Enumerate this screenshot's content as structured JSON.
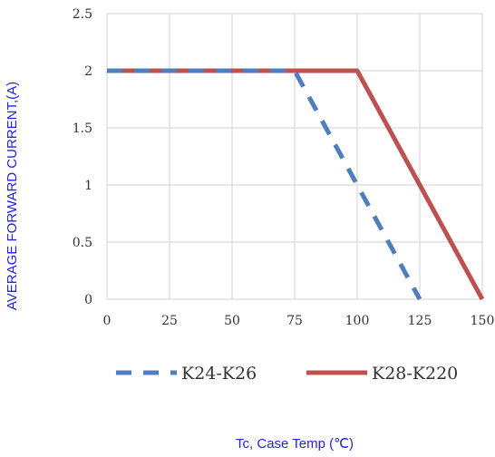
{
  "chart_data": {
    "type": "line",
    "title": "",
    "xlabel": "Tc, Case Temp (℃)",
    "ylabel": "AVERAGE FORWARD CURRENT,(A)",
    "x_ticks": [
      "0",
      "25",
      "50",
      "75",
      "100",
      "125",
      "150"
    ],
    "y_ticks": [
      "0",
      "0.5",
      "1",
      "1.5",
      "2",
      "2.5"
    ],
    "xlim": [
      0,
      150
    ],
    "ylim": [
      0,
      2.5
    ],
    "grid": true,
    "legend_position": "bottom",
    "series": [
      {
        "name": "K24-K26",
        "style": "dashed",
        "color": "#4f7ec0",
        "x": [
          0,
          75,
          125
        ],
        "y": [
          2,
          2,
          0
        ]
      },
      {
        "name": "K28-K220",
        "style": "solid",
        "color": "#c0504d",
        "x": [
          0,
          100,
          150
        ],
        "y": [
          2,
          2,
          0
        ]
      }
    ]
  }
}
